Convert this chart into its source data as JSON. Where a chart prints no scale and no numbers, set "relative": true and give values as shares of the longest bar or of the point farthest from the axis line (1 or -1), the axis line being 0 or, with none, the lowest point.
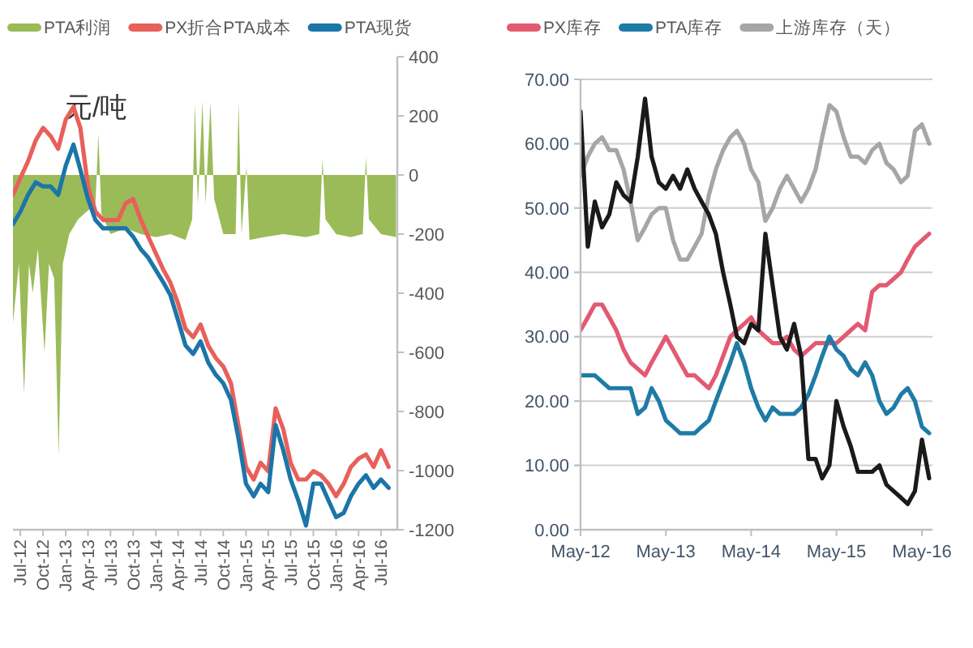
{
  "chart_data": [
    {
      "type": "area",
      "legend": "top",
      "annotations": [
        "元/吨"
      ],
      "x": [
        "2012-06-01",
        "2012-06-25",
        "2012-07-16",
        "2012-08-05",
        "2012-08-20",
        "2012-09-10",
        "2012-10-07",
        "2012-10-25",
        "2012-11-15",
        "2012-12-03",
        "2012-12-20",
        "2013-01-15",
        "2013-02-20",
        "2013-04-01",
        "2013-05-01",
        "2013-05-13",
        "2013-05-25",
        "2013-07-01",
        "2013-09-01",
        "2013-11-01",
        "2014-01-01",
        "2014-03-01",
        "2014-05-01",
        "2014-05-28",
        "2014-06-08",
        "2014-06-20",
        "2014-07-09",
        "2014-07-21",
        "2014-08-10",
        "2014-08-25",
        "2014-10-01",
        "2014-11-20",
        "2014-12-02",
        "2014-12-14",
        "2015-01-03",
        "2015-01-15",
        "2015-03-15",
        "2015-06-01",
        "2015-09-01",
        "2015-10-25",
        "2015-11-07",
        "2015-11-19",
        "2016-01-01",
        "2016-03-01",
        "2016-04-18",
        "2016-05-01",
        "2016-05-13",
        "2016-07-01",
        "2016-08-31"
      ],
      "xlim": [
        "2012-06-01",
        "2016-09-05"
      ],
      "xticks": [
        {
          "value": "2012-07-01",
          "label": "Jul-12"
        },
        {
          "value": "2012-10-01",
          "label": "Oct-12"
        },
        {
          "value": "2013-01-01",
          "label": "Jan-13"
        },
        {
          "value": "2013-04-01",
          "label": "Apr-13"
        },
        {
          "value": "2013-07-01",
          "label": "Jul-13"
        },
        {
          "value": "2013-10-01",
          "label": "Oct-13"
        },
        {
          "value": "2014-01-01",
          "label": "Jan-14"
        },
        {
          "value": "2014-04-01",
          "label": "Apr-14"
        },
        {
          "value": "2014-07-01",
          "label": "Jul-14"
        },
        {
          "value": "2014-10-01",
          "label": "Oct-14"
        },
        {
          "value": "2015-01-01",
          "label": "Jan-15"
        },
        {
          "value": "2015-04-01",
          "label": "Apr-15"
        },
        {
          "value": "2015-07-01",
          "label": "Jul-15"
        },
        {
          "value": "2015-10-01",
          "label": "Oct-15"
        },
        {
          "value": "2016-01-01",
          "label": "Jan-16"
        },
        {
          "value": "2016-04-01",
          "label": "Apr-16"
        },
        {
          "value": "2016-07-01",
          "label": "Jul-16"
        }
      ],
      "ylim": [
        -1200,
        400
      ],
      "yticks": [
        -1200,
        -1000,
        -800,
        -600,
        -400,
        -200,
        0,
        200,
        400
      ],
      "series": [
        {
          "name": "PTA利润",
          "color": "#9bbb59",
          "values": [
            -500,
            -300,
            -740,
            -300,
            -400,
            -250,
            -600,
            -300,
            -350,
            -950,
            -300,
            -200,
            -150,
            -120,
            -100,
            140,
            -130,
            -200,
            -180,
            -200,
            -210,
            -200,
            -220,
            -150,
            240,
            -100,
            250,
            -100,
            245,
            -80,
            -200,
            -200,
            245,
            -200,
            30,
            -220,
            -210,
            -200,
            -210,
            -200,
            55,
            -150,
            -200,
            -210,
            -200,
            60,
            -150,
            -200,
            -210
          ]
        }
      ]
    },
    {
      "type": "line",
      "relative": true,
      "tick_labels": false,
      "legend": "top",
      "x": [
        "2012-06",
        "2012-07",
        "2012-08",
        "2012-09",
        "2012-10",
        "2012-11",
        "2012-12",
        "2013-01",
        "2013-02",
        "2013-03",
        "2013-04",
        "2013-05",
        "2013-06",
        "2013-07",
        "2013-08",
        "2013-09",
        "2013-10",
        "2013-11",
        "2013-12",
        "2014-01",
        "2014-02",
        "2014-03",
        "2014-04",
        "2014-05",
        "2014-06",
        "2014-07",
        "2014-08",
        "2014-09",
        "2014-10",
        "2014-11",
        "2014-12",
        "2015-01",
        "2015-02",
        "2015-03",
        "2015-04",
        "2015-05",
        "2015-06",
        "2015-07",
        "2015-08",
        "2015-09",
        "2015-10",
        "2015-11",
        "2015-12",
        "2016-01",
        "2016-02",
        "2016-03",
        "2016-04",
        "2016-05",
        "2016-06",
        "2016-07",
        "2016-08"
      ],
      "xlim": [
        "2012-06-01",
        "2016-09-05"
      ],
      "series": [
        {
          "name": "PX折合PTA成本",
          "color": "#e8605a",
          "values": [
            0.79,
            0.83,
            0.87,
            0.92,
            0.95,
            0.93,
            0.9,
            0.97,
            1.0,
            0.95,
            0.81,
            0.75,
            0.73,
            0.73,
            0.73,
            0.77,
            0.78,
            0.73,
            0.69,
            0.65,
            0.61,
            0.58,
            0.53,
            0.47,
            0.45,
            0.48,
            0.43,
            0.4,
            0.38,
            0.34,
            0.24,
            0.14,
            0.11,
            0.15,
            0.13,
            0.28,
            0.23,
            0.15,
            0.11,
            0.11,
            0.13,
            0.12,
            0.1,
            0.07,
            0.1,
            0.14,
            0.16,
            0.17,
            0.14,
            0.18,
            0.14
          ]
        },
        {
          "name": "PTA现货",
          "color": "#1b75a8",
          "values": [
            0.72,
            0.75,
            0.79,
            0.82,
            0.81,
            0.81,
            0.79,
            0.86,
            0.91,
            0.85,
            0.78,
            0.73,
            0.71,
            0.71,
            0.71,
            0.71,
            0.69,
            0.66,
            0.64,
            0.61,
            0.58,
            0.55,
            0.49,
            0.43,
            0.41,
            0.44,
            0.39,
            0.36,
            0.34,
            0.3,
            0.21,
            0.1,
            0.07,
            0.1,
            0.08,
            0.24,
            0.18,
            0.11,
            0.06,
            0.0,
            0.1,
            0.1,
            0.06,
            0.02,
            0.03,
            0.07,
            0.1,
            0.12,
            0.09,
            0.11,
            0.09
          ]
        }
      ]
    },
    {
      "type": "line",
      "legend": "top",
      "grid": "y",
      "x": [
        "2012-05",
        "2012-06",
        "2012-07",
        "2012-08",
        "2012-09",
        "2012-10",
        "2012-11",
        "2012-12",
        "2013-01",
        "2013-02",
        "2013-03",
        "2013-04",
        "2013-05",
        "2013-06",
        "2013-07",
        "2013-08",
        "2013-09",
        "2013-10",
        "2013-11",
        "2013-12",
        "2014-01",
        "2014-02",
        "2014-03",
        "2014-04",
        "2014-05",
        "2014-06",
        "2014-07",
        "2014-08",
        "2014-09",
        "2014-10",
        "2014-11",
        "2014-12",
        "2015-01",
        "2015-02",
        "2015-03",
        "2015-04",
        "2015-05",
        "2015-06",
        "2015-07",
        "2015-08",
        "2015-09",
        "2015-10",
        "2015-11",
        "2015-12",
        "2016-01",
        "2016-02",
        "2016-03",
        "2016-04",
        "2016-05",
        "2016-06"
      ],
      "xlim": [
        "2012-05-01",
        "2016-06-15"
      ],
      "xticks": [
        {
          "value": "2012-05-01",
          "label": "May-12"
        },
        {
          "value": "2013-05-01",
          "label": "May-13"
        },
        {
          "value": "2014-05-01",
          "label": "May-14"
        },
        {
          "value": "2015-05-01",
          "label": "May-15"
        },
        {
          "value": "2016-05-01",
          "label": "May-16"
        }
      ],
      "ylim": [
        0,
        70
      ],
      "yticks": [
        {
          "value": 0,
          "label": "0.00"
        },
        {
          "value": 10,
          "label": "10.00"
        },
        {
          "value": 20,
          "label": "20.00"
        },
        {
          "value": 30,
          "label": "30.00"
        },
        {
          "value": 40,
          "label": "40.00"
        },
        {
          "value": 50,
          "label": "50.00"
        },
        {
          "value": 60,
          "label": "60.00"
        },
        {
          "value": 70,
          "label": "70.00"
        }
      ],
      "series": [
        {
          "name": "PX库存",
          "color": "#e25a72",
          "values": [
            31,
            33,
            35,
            35,
            33,
            31,
            28,
            26,
            25,
            24,
            26,
            28,
            30,
            28,
            26,
            24,
            24,
            23,
            22,
            24,
            27,
            30,
            31,
            32,
            33,
            31,
            30,
            29,
            29,
            30,
            28,
            27,
            28,
            29,
            29,
            29,
            29,
            30,
            31,
            32,
            31,
            37,
            38,
            38,
            39,
            40,
            42,
            44,
            45,
            46
          ]
        },
        {
          "name": "PTA库存",
          "color": "#1e7ba6",
          "values": [
            24,
            24,
            24,
            23,
            22,
            22,
            22,
            22,
            18,
            19,
            22,
            20,
            17,
            16,
            15,
            15,
            15,
            16,
            17,
            20,
            23,
            26,
            29,
            26,
            22,
            19,
            17,
            19,
            18,
            18,
            18,
            19,
            21,
            24,
            27,
            30,
            28,
            27,
            25,
            24,
            26,
            24,
            20,
            18,
            19,
            21,
            22,
            20,
            16,
            15
          ]
        },
        {
          "name": "上游库存（天）",
          "color": "#a6a6a6",
          "values": [
            55,
            58,
            60,
            61,
            59,
            59,
            56,
            51,
            45,
            47,
            49,
            50,
            50,
            45,
            42,
            42,
            44,
            46,
            52,
            56,
            59,
            61,
            62,
            60,
            56,
            54,
            48,
            50,
            53,
            55,
            53,
            51,
            53,
            56,
            61,
            66,
            65,
            61,
            58,
            58,
            57,
            59,
            60,
            57,
            56,
            54,
            55,
            62,
            63,
            60
          ]
        },
        {
          "color": "#1a1a1a",
          "values": [
            65,
            44,
            51,
            47,
            49,
            54,
            52,
            51,
            58,
            67,
            58,
            54,
            53,
            55,
            53,
            56,
            53,
            51,
            49,
            46,
            40,
            35,
            30,
            29,
            32,
            31,
            46,
            38,
            30,
            28,
            32,
            27,
            11,
            11,
            8,
            10,
            20,
            16,
            13,
            9,
            9,
            9,
            10,
            7,
            6,
            5,
            4,
            6,
            14,
            8
          ]
        }
      ]
    }
  ]
}
